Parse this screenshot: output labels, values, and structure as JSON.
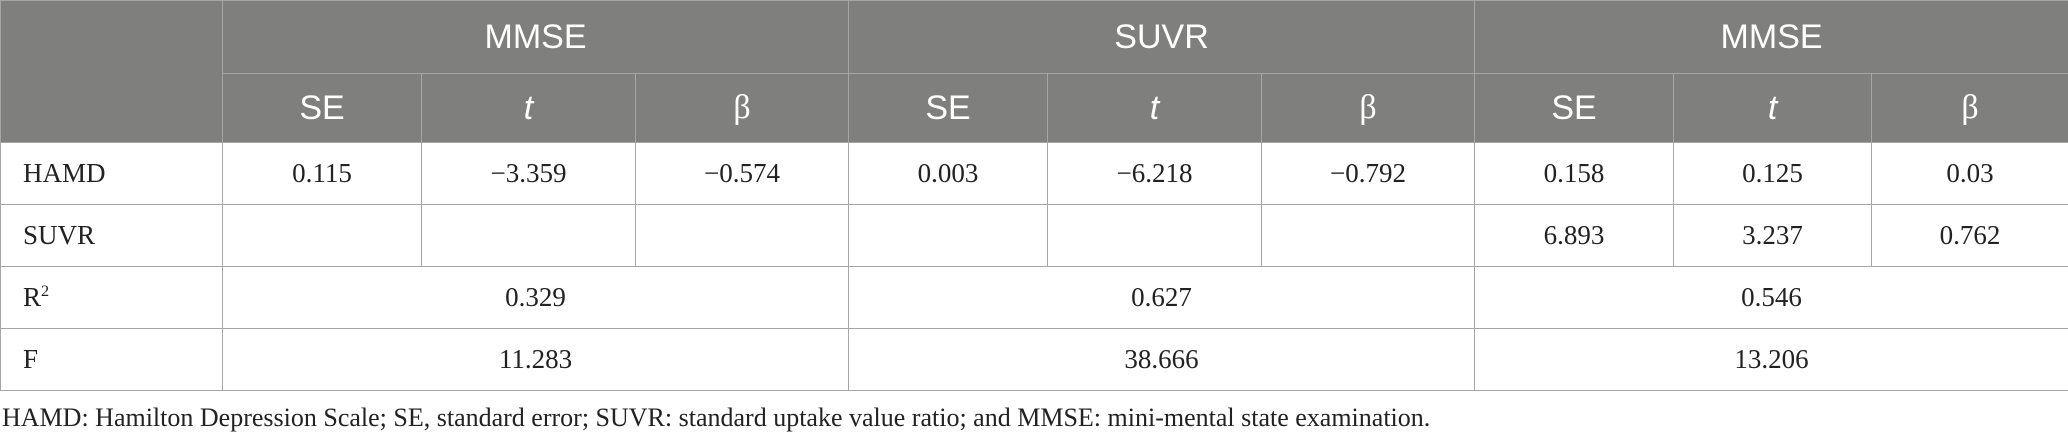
{
  "header": {
    "groups": [
      "MMSE",
      "SUVR",
      "MMSE"
    ],
    "sub_columns": [
      "SE",
      "t",
      "β"
    ]
  },
  "rows": [
    {
      "label": "HAMD",
      "values": [
        "0.115",
        "−3.359",
        "−0.574",
        "0.003",
        "−6.218",
        "−0.792",
        "0.158",
        "0.125",
        "0.03"
      ]
    },
    {
      "label": "SUVR",
      "values": [
        "",
        "",
        "",
        "",
        "",
        "",
        "6.893",
        "3.237",
        "0.762"
      ]
    }
  ],
  "summary_rows": [
    {
      "label_base": "R",
      "label_sup": "2",
      "values": [
        "0.329",
        "0.627",
        "0.546"
      ]
    },
    {
      "label_base": "F",
      "label_sup": "",
      "values": [
        "11.283",
        "38.666",
        "13.206"
      ]
    }
  ],
  "footnote": "HAMD: Hamilton Depression Scale; SE, standard error; SUVR: standard uptake value ratio; and MMSE: mini-mental state examination."
}
